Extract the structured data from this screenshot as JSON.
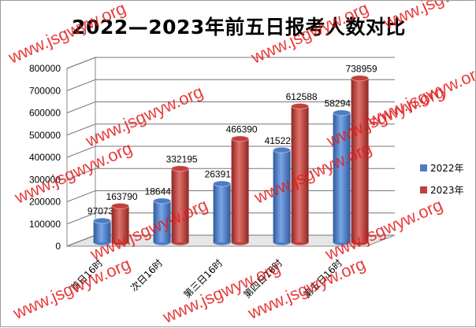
{
  "chart_data": {
    "type": "bar",
    "title": "2022—2023年前五日报考人数对比",
    "categories": [
      "首日16时",
      "次日16时",
      "第三日16时",
      "第四日16时",
      "第五日16时"
    ],
    "series": [
      {
        "name": "2022年",
        "values": [
          97073,
          186445,
          263912,
          415220,
          582941
        ],
        "color": "#4a7cc7"
      },
      {
        "name": "2023年",
        "values": [
          163790,
          332195,
          466390,
          612588,
          738959
        ],
        "color": "#c0403c"
      }
    ],
    "ylim": [
      0,
      800000
    ],
    "yticks": [
      0,
      100000,
      200000,
      300000,
      400000,
      500000,
      600000,
      700000,
      800000
    ],
    "grid": true,
    "legend": "right",
    "watermark": "www.jsgwyw.org"
  }
}
